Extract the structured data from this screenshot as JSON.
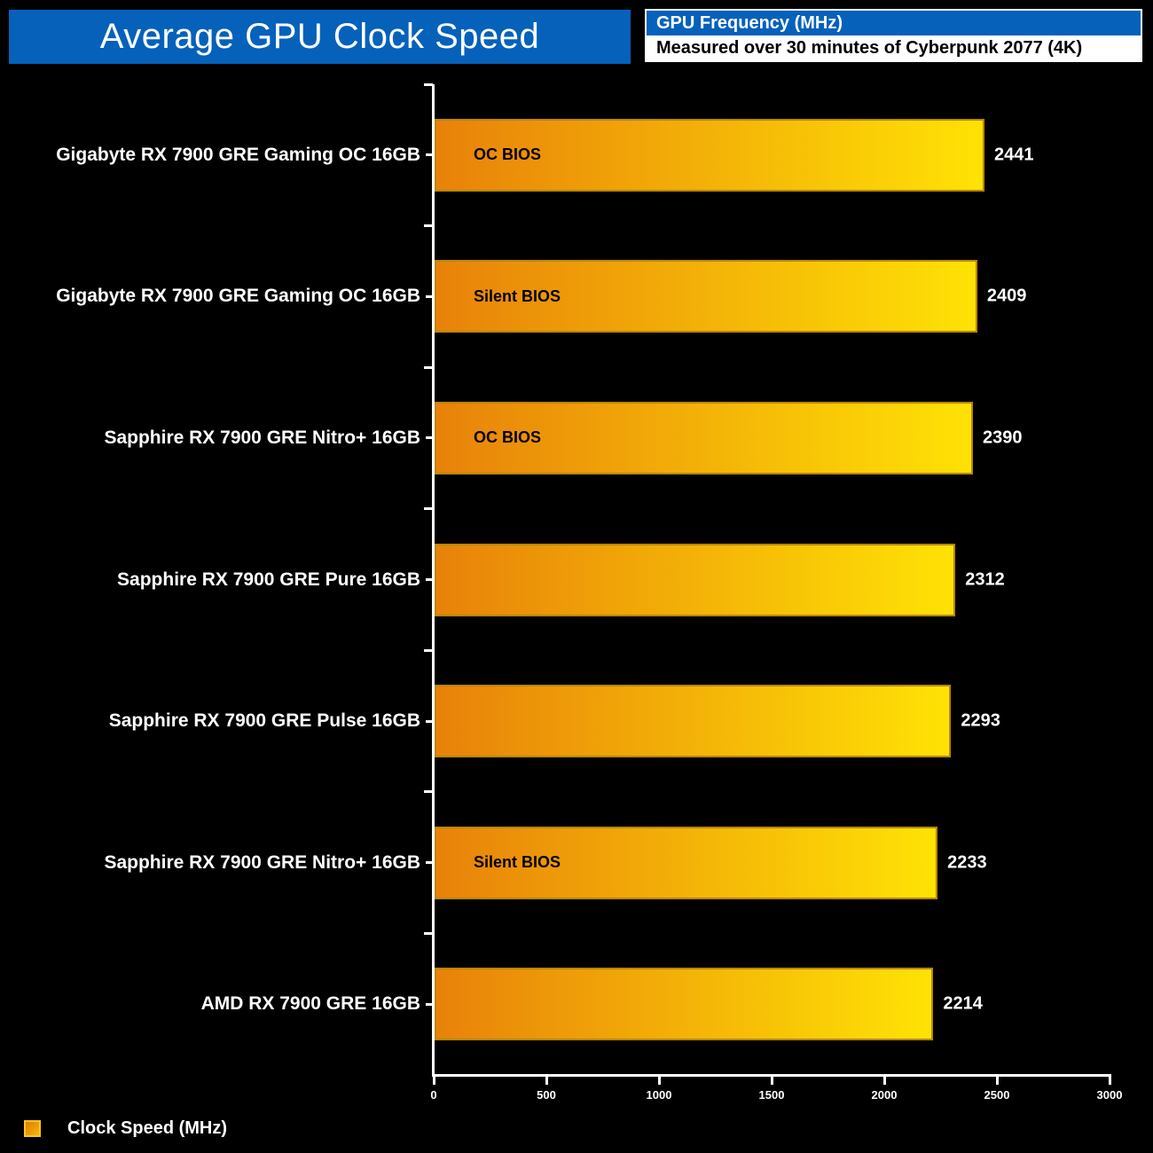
{
  "title": "Average GPU Clock Speed",
  "header": {
    "series_name": "GPU Frequency (MHz)",
    "subtitle": "Measured over 30 minutes of Cyberpunk 2077 (4K)"
  },
  "legend": {
    "label": "Clock Speed (MHz)"
  },
  "colors": {
    "title_bg": "#0561ba",
    "header_bg": "#0561ba",
    "bar_gradient_start": "#e8820a",
    "bar_gradient_end": "#ffe205",
    "bar_border": "#b8860b",
    "background": "#000000",
    "text": "#ffffff"
  },
  "chart_data": {
    "type": "bar",
    "orientation": "horizontal",
    "title": "Average GPU Clock Speed",
    "xlabel": "",
    "ylabel": "",
    "xlim": [
      0,
      3000
    ],
    "x_ticks": [
      "0",
      "500",
      "1000",
      "1500",
      "2000",
      "2500",
      "3000"
    ],
    "x_tick_values": [
      0,
      500,
      1000,
      1500,
      2000,
      2500,
      3000
    ],
    "grid": false,
    "legend_position": "bottom-left",
    "series_name": "Clock Speed (MHz)",
    "rows": [
      {
        "label": "Gigabyte RX 7900 GRE Gaming OC 16GB",
        "annotation": "OC BIOS",
        "value": 2441
      },
      {
        "label": "Gigabyte RX 7900 GRE Gaming OC 16GB",
        "annotation": "Silent BIOS",
        "value": 2409
      },
      {
        "label": "Sapphire RX 7900 GRE Nitro+ 16GB",
        "annotation": "OC BIOS",
        "value": 2390
      },
      {
        "label": "Sapphire RX 7900 GRE Pure 16GB",
        "annotation": "",
        "value": 2312
      },
      {
        "label": "Sapphire RX 7900 GRE Pulse 16GB",
        "annotation": "",
        "value": 2293
      },
      {
        "label": "Sapphire RX 7900 GRE Nitro+ 16GB",
        "annotation": "Silent BIOS",
        "value": 2233
      },
      {
        "label": "AMD RX 7900 GRE 16GB",
        "annotation": "",
        "value": 2214
      }
    ]
  }
}
